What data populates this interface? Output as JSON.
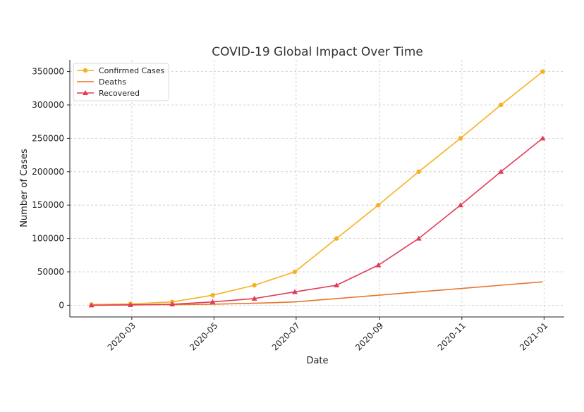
{
  "chart_data": {
    "type": "line",
    "title": "COVID-19 Global Impact Over Time",
    "xlabel": "Date",
    "ylabel": "Number of Cases",
    "x": [
      "2020-01-31",
      "2020-02-29",
      "2020-03-31",
      "2020-04-30",
      "2020-05-31",
      "2020-06-30",
      "2020-07-31",
      "2020-08-31",
      "2020-09-30",
      "2020-10-31",
      "2020-11-30",
      "2020-12-31"
    ],
    "x_ticks": [
      "2020-03",
      "2020-05",
      "2020-07",
      "2020-09",
      "2020-11",
      "2021-01"
    ],
    "x_tick_dates": [
      "2020-03-01",
      "2020-05-01",
      "2020-07-01",
      "2020-09-01",
      "2020-11-01",
      "2021-01-01"
    ],
    "xlim": [
      "2020-01-15",
      "2021-01-16"
    ],
    "ylim": [
      -17500,
      367500
    ],
    "y_ticks": [
      0,
      50000,
      100000,
      150000,
      200000,
      250000,
      300000,
      350000
    ],
    "grid": true,
    "legend_position": "top-left",
    "series": [
      {
        "name": "Confirmed Cases",
        "color": "#f5b120",
        "marker": "circle",
        "values": [
          1000,
          2000,
          5000,
          15000,
          30000,
          50000,
          100000,
          150000,
          200000,
          250000,
          300000,
          350000
        ]
      },
      {
        "name": "Deaths",
        "color": "#e8742a",
        "marker": "none",
        "values": [
          0,
          500,
          1000,
          1500,
          3000,
          5000,
          10000,
          15000,
          20000,
          25000,
          30000,
          35000
        ]
      },
      {
        "name": "Recovered",
        "color": "#e23a57",
        "marker": "triangle",
        "values": [
          0,
          500,
          1500,
          5000,
          10000,
          20000,
          30000,
          60000,
          100000,
          150000,
          200000,
          250000
        ]
      }
    ]
  }
}
